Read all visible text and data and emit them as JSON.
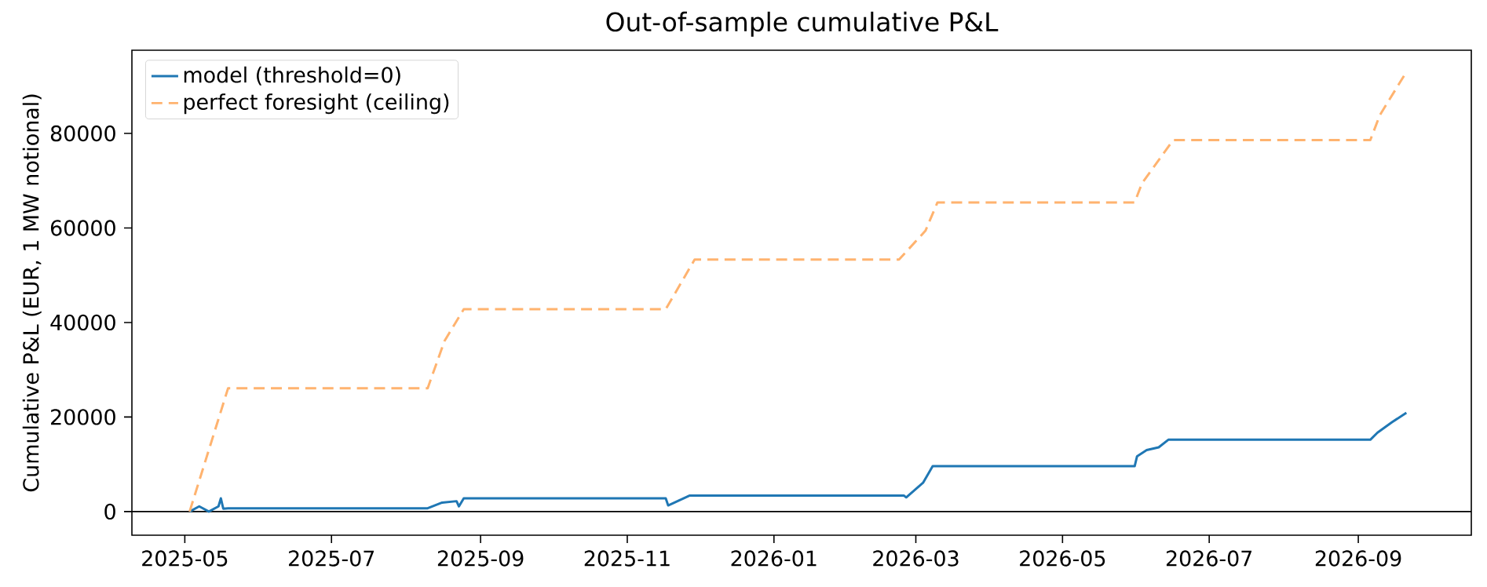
{
  "chart_data": {
    "type": "line",
    "title": "Out-of-sample cumulative P&L",
    "ylabel": "Cumulative P&L (EUR, 1 MW notional)",
    "xlim": [
      "2025-04-09",
      "2026-10-18"
    ],
    "ylim": [
      -5000,
      97600
    ],
    "xticks": [
      "2025-05",
      "2025-07",
      "2025-09",
      "2025-11",
      "2026-01",
      "2026-03",
      "2026-05",
      "2026-07",
      "2026-09"
    ],
    "yticks": [
      0,
      20000,
      40000,
      60000,
      80000
    ],
    "grid": false,
    "legend": "top left",
    "marker": "none",
    "ref_lines": [
      {
        "axis": "y",
        "value": 0,
        "color": "#000000"
      }
    ],
    "series": [
      {
        "name": "model (threshold=0)",
        "color": "#1f77b4",
        "line_style": "solid",
        "x": [
          "2025-05-03",
          "2025-05-07",
          "2025-05-11",
          "2025-05-15",
          "2025-05-16",
          "2025-05-17",
          "2025-05-19",
          "2025-08-10",
          "2025-08-16",
          "2025-08-22",
          "2025-08-23",
          "2025-08-25",
          "2025-11-17",
          "2025-11-18",
          "2025-11-27",
          "2026-02-24",
          "2026-02-25",
          "2026-03-04",
          "2026-03-08",
          "2026-05-31",
          "2026-06-01",
          "2026-06-05",
          "2026-06-10",
          "2026-06-14",
          "2026-09-06",
          "2026-09-09",
          "2026-09-15",
          "2026-09-21"
        ],
        "values": [
          0,
          1100,
          0,
          1100,
          2800,
          600,
          700,
          700,
          1900,
          2200,
          1100,
          2800,
          2800,
          1300,
          3400,
          3400,
          3000,
          6100,
          9600,
          9600,
          11700,
          13000,
          13600,
          15200,
          15200,
          16700,
          18900,
          20900
        ]
      },
      {
        "name": "perfect foresight (ceiling)",
        "color": "#ffb36f",
        "line_style": "dashed",
        "x": [
          "2025-05-03",
          "2025-05-19",
          "2025-08-10",
          "2025-08-17",
          "2025-08-25",
          "2025-11-17",
          "2025-11-29",
          "2026-02-22",
          "2026-03-05",
          "2026-03-10",
          "2026-05-31",
          "2026-06-03",
          "2026-06-16",
          "2026-09-06",
          "2026-09-10",
          "2026-09-21"
        ],
        "values": [
          0,
          26100,
          26100,
          36100,
          42800,
          42800,
          53300,
          53300,
          59400,
          65400,
          65400,
          69400,
          78600,
          78600,
          83900,
          93000
        ]
      }
    ]
  }
}
